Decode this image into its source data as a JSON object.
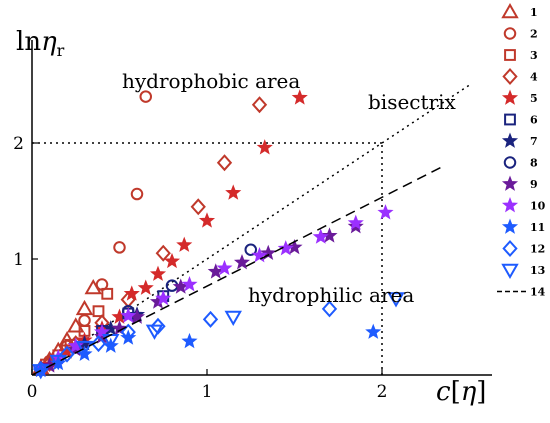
{
  "chart_data": {
    "type": "scatter",
    "ylabel": "lnη_r",
    "ylabel_main": "ln",
    "ylabel_eta": "η",
    "ylabel_sub": "r",
    "xlabel": "c[η]",
    "xlabel_c": "c",
    "xlabel_lb": "[",
    "xlabel_eta": "η",
    "xlabel_rb": "]",
    "xlim": [
      0,
      2.35
    ],
    "ylim": [
      0,
      2.75
    ],
    "xticks": [
      {
        "v": 0,
        "label": "0"
      },
      {
        "v": 1,
        "label": "1"
      },
      {
        "v": 2,
        "label": "2"
      }
    ],
    "yticks": [
      {
        "v": 1,
        "label": "1"
      },
      {
        "v": 2,
        "label": "2"
      }
    ],
    "grid": false,
    "legend_position": "right",
    "annotations": {
      "hydrophobic": "hydrophobic area",
      "hydrophilic": "hydrophilic area",
      "bisectrix": "bisectrix"
    },
    "reference_lines": {
      "bisectrix": {
        "from": [
          0,
          0
        ],
        "to": [
          2.5,
          2.5
        ]
      },
      "dotted_h": {
        "y": 2,
        "x_from": 0,
        "x_to": 2
      },
      "dotted_v": {
        "x": 2,
        "y_from": 0,
        "y_to": 2
      }
    },
    "series": [
      {
        "name": "1",
        "marker": "triangle",
        "color": "#c0392b",
        "fill": "none",
        "x": [
          0.05,
          0.1,
          0.15,
          0.2,
          0.25,
          0.3,
          0.35
        ],
        "y": [
          0.06,
          0.13,
          0.21,
          0.3,
          0.42,
          0.57,
          0.75
        ]
      },
      {
        "name": "2",
        "marker": "circle",
        "color": "#c0392b",
        "fill": "none",
        "x": [
          0.1,
          0.2,
          0.3,
          0.4,
          0.5,
          0.6,
          0.65
        ],
        "y": [
          0.12,
          0.25,
          0.47,
          0.78,
          1.1,
          1.56,
          2.4
        ]
      },
      {
        "name": "3",
        "marker": "square",
        "color": "#c0392b",
        "fill": "none",
        "x": [
          0.08,
          0.15,
          0.22,
          0.3,
          0.38,
          0.43
        ],
        "y": [
          0.09,
          0.17,
          0.26,
          0.38,
          0.55,
          0.7
        ]
      },
      {
        "name": "4",
        "marker": "diamond",
        "color": "#c0392b",
        "fill": "none",
        "x": [
          0.1,
          0.25,
          0.4,
          0.55,
          0.75,
          0.95,
          1.1,
          1.3
        ],
        "y": [
          0.1,
          0.27,
          0.45,
          0.65,
          1.05,
          1.45,
          1.83,
          2.33
        ]
      },
      {
        "name": "5",
        "marker": "star",
        "color": "#d42a2a",
        "fill": "#d42a2a",
        "x": [
          0.1,
          0.2,
          0.3,
          0.4,
          0.5,
          0.57,
          0.65,
          0.72,
          0.8,
          0.87,
          1.0,
          1.15,
          1.33,
          1.53
        ],
        "y": [
          0.09,
          0.2,
          0.3,
          0.4,
          0.5,
          0.7,
          0.75,
          0.87,
          0.98,
          1.12,
          1.33,
          1.57,
          1.96,
          2.39
        ]
      },
      {
        "name": "6",
        "marker": "square",
        "color": "#1a237e",
        "fill": "none",
        "x": [
          0.4,
          0.55,
          0.75
        ],
        "y": [
          0.38,
          0.53,
          0.68
        ]
      },
      {
        "name": "7",
        "marker": "star",
        "color": "#1a237e",
        "fill": "#1a237e",
        "x": [
          0.3,
          0.45,
          0.6
        ],
        "y": [
          0.27,
          0.4,
          0.52
        ]
      },
      {
        "name": "8",
        "marker": "circle",
        "color": "#1a237e",
        "fill": "none",
        "x": [
          0.55,
          0.8,
          1.25
        ],
        "y": [
          0.55,
          0.77,
          1.08
        ]
      },
      {
        "name": "9",
        "marker": "star",
        "color": "#6a1b9a",
        "fill": "#6a1b9a",
        "x": [
          0.1,
          0.25,
          0.4,
          0.5,
          0.6,
          0.72,
          0.85,
          1.05,
          1.2,
          1.35,
          1.5,
          1.7,
          1.85
        ],
        "y": [
          0.08,
          0.22,
          0.33,
          0.4,
          0.5,
          0.63,
          0.76,
          0.89,
          0.97,
          1.05,
          1.1,
          1.2,
          1.28
        ]
      },
      {
        "name": "10",
        "marker": "star",
        "color": "#9b30ff",
        "fill": "#9b30ff",
        "x": [
          0.05,
          0.15,
          0.25,
          0.4,
          0.55,
          0.75,
          0.9,
          1.1,
          1.3,
          1.45,
          1.65,
          1.85,
          2.02
        ],
        "y": [
          0.05,
          0.15,
          0.25,
          0.37,
          0.51,
          0.66,
          0.78,
          0.92,
          1.03,
          1.09,
          1.19,
          1.31,
          1.4
        ]
      },
      {
        "name": "11",
        "marker": "star",
        "color": "#1e5bff",
        "fill": "#1e5bff",
        "x": [
          0.05,
          0.15,
          0.3,
          0.45,
          0.55,
          0.9,
          1.95
        ],
        "y": [
          0.04,
          0.1,
          0.18,
          0.25,
          0.32,
          0.29,
          0.37
        ]
      },
      {
        "name": "12",
        "marker": "diamond",
        "color": "#1e5bff",
        "fill": "none",
        "x": [
          0.05,
          0.2,
          0.38,
          0.55,
          0.72,
          1.02,
          1.7
        ],
        "y": [
          0.05,
          0.18,
          0.27,
          0.37,
          0.42,
          0.48,
          0.57
        ]
      },
      {
        "name": "13",
        "marker": "triangle-down",
        "color": "#1e5bff",
        "fill": "none",
        "x": [
          0.05,
          0.15,
          0.3,
          0.45,
          0.7,
          1.15,
          2.08
        ],
        "y": [
          0.04,
          0.12,
          0.24,
          0.3,
          0.38,
          0.5,
          0.66
        ]
      },
      {
        "name": "14",
        "marker": "dash-line",
        "color": "#000000",
        "fill": "none",
        "line": {
          "from": [
            0,
            0
          ],
          "to": [
            2.35,
            1.8
          ]
        }
      }
    ]
  }
}
